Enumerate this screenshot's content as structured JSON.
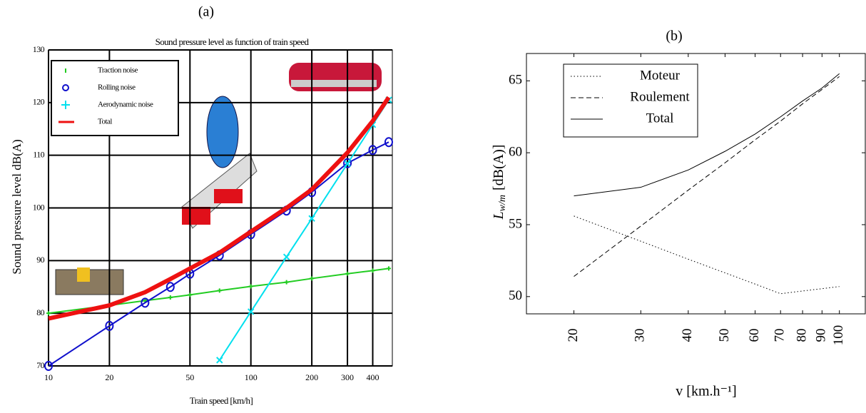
{
  "chart_data": [
    {
      "type": "line",
      "panel_label": "(a)",
      "title": "Sound pressure level as function of train speed",
      "x_label": "Train speed [km/h]",
      "y_label": "Sound pressure level dB(A)",
      "x": [
        10,
        20,
        30,
        40,
        50,
        70,
        100,
        150,
        200,
        300,
        400,
        480
      ],
      "series": [
        {
          "name": "Traction noise",
          "color": "#22cc22",
          "marker": "+",
          "values": [
            80,
            81.5,
            82.4,
            83,
            83.5,
            84.3,
            85.1,
            85.9,
            86.6,
            87.5,
            88.1,
            88.5
          ]
        },
        {
          "name": "Rolling noise",
          "color": "#1010cc",
          "marker": "o",
          "values": [
            70,
            77.6,
            82,
            85,
            87.5,
            91,
            95,
            99.5,
            103,
            108.5,
            111,
            112.5
          ]
        },
        {
          "name": "Aerodynamic noise",
          "color": "#00e0ee",
          "marker": "x",
          "values": [
            null,
            null,
            null,
            null,
            null,
            71.1,
            80.3,
            90.7,
            98,
            108.4,
            115.8,
            120.5
          ]
        },
        {
          "name": "Total",
          "color": "#ee1111",
          "marker": "none",
          "values": [
            79,
            81.5,
            84,
            86.5,
            88.5,
            91.5,
            95.5,
            100,
            103.5,
            110.5,
            116.5,
            121
          ]
        }
      ],
      "x_log": true,
      "xlim": [
        10,
        500
      ],
      "xticks": [
        10,
        20,
        50,
        100,
        200,
        300,
        400
      ],
      "ylim": [
        70,
        130
      ],
      "yticks": [
        70,
        80,
        90,
        100,
        110,
        120,
        130
      ],
      "grid": true,
      "legend": "upper left"
    },
    {
      "type": "line",
      "panel_label": "(b)",
      "x_label": "v [km.h⁻¹]",
      "y_label": {
        "symbol": "L",
        "subscript": "w/m",
        "unit": "[dB(A)]"
      },
      "x": [
        20,
        30,
        40,
        50,
        60,
        70,
        80,
        90,
        100
      ],
      "series": [
        {
          "name": "Moteur",
          "color": "#000000",
          "dash": "dotted",
          "values": [
            55.6,
            53.85,
            52.6,
            51.65,
            50.87,
            50.2,
            50.39,
            50.55,
            50.7
          ]
        },
        {
          "name": "Roulement",
          "color": "#000000",
          "dash": "dashed",
          "values": [
            51.4,
            54.9,
            57.4,
            59.3,
            60.9,
            62.2,
            63.4,
            64.4,
            65.3
          ]
        },
        {
          "name": "Total",
          "color": "#000000",
          "dash": "solid",
          "values": [
            57.0,
            57.6,
            58.8,
            60.1,
            61.3,
            62.5,
            63.6,
            64.5,
            65.5
          ]
        }
      ],
      "x_log": true,
      "xlim": [
        15,
        117
      ],
      "xticks": [
        20,
        30,
        40,
        50,
        60,
        70,
        80,
        90,
        100
      ],
      "ylim": [
        48.8,
        66.9
      ],
      "yticks": [
        50,
        55,
        60,
        65
      ],
      "grid": false,
      "legend": "upper left"
    }
  ]
}
